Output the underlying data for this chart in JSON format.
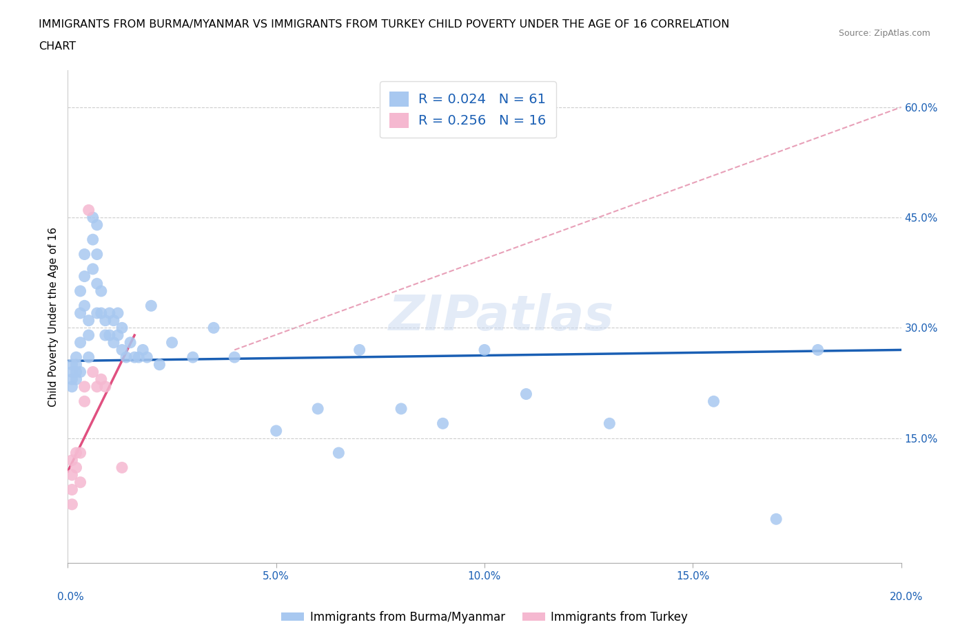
{
  "title_line1": "IMMIGRANTS FROM BURMA/MYANMAR VS IMMIGRANTS FROM TURKEY CHILD POVERTY UNDER THE AGE OF 16 CORRELATION",
  "title_line2": "CHART",
  "source": "Source: ZipAtlas.com",
  "ylabel": "Child Poverty Under the Age of 16",
  "legend_label1": "Immigrants from Burma/Myanmar",
  "legend_label2": "Immigrants from Turkey",
  "legend_R1": "R = 0.024",
  "legend_N1": "N = 61",
  "legend_R2": "R = 0.256",
  "legend_N2": "N = 16",
  "xlim": [
    0.0,
    0.2
  ],
  "ylim": [
    -0.02,
    0.65
  ],
  "xticks": [
    0.0,
    0.05,
    0.1,
    0.15,
    0.2
  ],
  "yticks": [
    0.15,
    0.3,
    0.45,
    0.6
  ],
  "xticklabels_bottom": [
    "0.0%",
    "",
    "",
    "",
    "20.0%"
  ],
  "xticklabels_inner": [
    "",
    "5.0%",
    "10.0%",
    "15.0%",
    ""
  ],
  "yticklabels": [
    "15.0%",
    "30.0%",
    "45.0%",
    "60.0%"
  ],
  "color_blue": "#a8c8f0",
  "color_pink": "#f5b8d0",
  "color_trend_blue": "#1a5fb4",
  "color_trend_pink": "#e05080",
  "color_trend_dashed": "#e8a0b8",
  "background": "#ffffff",
  "watermark": "ZIPatlas",
  "blue_trend_x": [
    0.0,
    0.2
  ],
  "blue_trend_y": [
    0.255,
    0.27
  ],
  "pink_trend_x": [
    0.0,
    0.016
  ],
  "pink_trend_y": [
    0.105,
    0.29
  ],
  "dashed_trend_x": [
    0.04,
    0.2
  ],
  "dashed_trend_y": [
    0.27,
    0.6
  ],
  "blue_x": [
    0.001,
    0.001,
    0.001,
    0.001,
    0.002,
    0.002,
    0.002,
    0.002,
    0.003,
    0.003,
    0.003,
    0.003,
    0.004,
    0.004,
    0.004,
    0.005,
    0.005,
    0.005,
    0.006,
    0.006,
    0.006,
    0.007,
    0.007,
    0.007,
    0.007,
    0.008,
    0.008,
    0.009,
    0.009,
    0.01,
    0.01,
    0.011,
    0.011,
    0.012,
    0.012,
    0.013,
    0.013,
    0.014,
    0.015,
    0.016,
    0.017,
    0.018,
    0.019,
    0.02,
    0.022,
    0.025,
    0.03,
    0.035,
    0.04,
    0.05,
    0.06,
    0.065,
    0.07,
    0.08,
    0.09,
    0.1,
    0.11,
    0.13,
    0.155,
    0.17,
    0.18
  ],
  "blue_y": [
    0.25,
    0.24,
    0.23,
    0.22,
    0.26,
    0.25,
    0.24,
    0.23,
    0.35,
    0.32,
    0.28,
    0.24,
    0.4,
    0.37,
    0.33,
    0.31,
    0.29,
    0.26,
    0.45,
    0.42,
    0.38,
    0.44,
    0.4,
    0.36,
    0.32,
    0.35,
    0.32,
    0.31,
    0.29,
    0.32,
    0.29,
    0.31,
    0.28,
    0.32,
    0.29,
    0.3,
    0.27,
    0.26,
    0.28,
    0.26,
    0.26,
    0.27,
    0.26,
    0.33,
    0.25,
    0.28,
    0.26,
    0.3,
    0.26,
    0.16,
    0.19,
    0.13,
    0.27,
    0.19,
    0.17,
    0.27,
    0.21,
    0.17,
    0.2,
    0.04,
    0.27
  ],
  "pink_x": [
    0.001,
    0.001,
    0.001,
    0.001,
    0.002,
    0.002,
    0.003,
    0.003,
    0.004,
    0.004,
    0.005,
    0.006,
    0.007,
    0.008,
    0.009,
    0.013
  ],
  "pink_y": [
    0.12,
    0.1,
    0.08,
    0.06,
    0.13,
    0.11,
    0.13,
    0.09,
    0.22,
    0.2,
    0.46,
    0.24,
    0.22,
    0.23,
    0.22,
    0.11
  ]
}
